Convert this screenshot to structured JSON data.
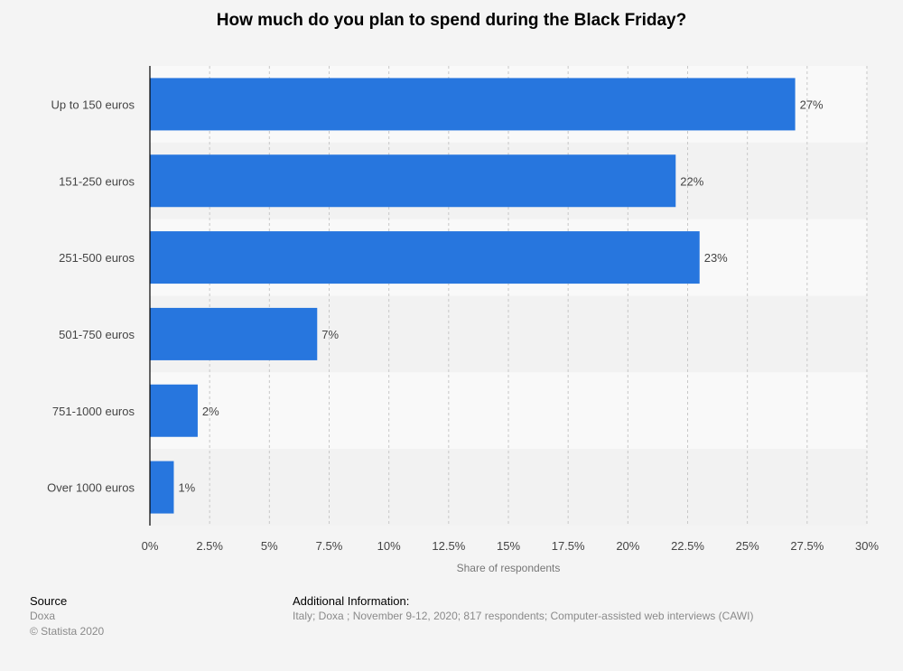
{
  "colors": {
    "bar": "#2776de",
    "band_light": "#f9f9f9",
    "band_dark": "#f2f2f2",
    "grid": "#c8c8c8",
    "axis": "#000000",
    "label_text": "#444444",
    "axis_title": "#777777"
  },
  "chart_data": {
    "type": "bar",
    "orientation": "horizontal",
    "title": "How much do you plan to spend during the Black Friday?",
    "categories": [
      "Up to 150 euros",
      "151-250 euros",
      "251-500 euros",
      "501-750 euros",
      "751-1000 euros",
      "Over 1000 euros"
    ],
    "values": [
      27,
      22,
      23,
      7,
      2,
      1
    ],
    "value_labels": [
      "27%",
      "22%",
      "23%",
      "7%",
      "2%",
      "1%"
    ],
    "xlabel": "Share of respondents",
    "ylabel": "",
    "xlim": [
      0,
      30
    ],
    "xticks": [
      0,
      2.5,
      5,
      7.5,
      10,
      12.5,
      15,
      17.5,
      20,
      22.5,
      25,
      27.5,
      30
    ],
    "xtick_labels": [
      "0%",
      "2.5%",
      "5%",
      "7.5%",
      "10%",
      "12.5%",
      "15%",
      "17.5%",
      "20%",
      "22.5%",
      "25%",
      "27.5%",
      "30%"
    ],
    "grid": true,
    "grid_style": "dashed vertical"
  },
  "footer": {
    "source_heading": "Source",
    "source_name": "Doxa",
    "copyright": "© Statista 2020",
    "additional_heading": "Additional Information:",
    "additional_text": "Italy; Doxa ; November 9-12, 2020; 817 respondents; Computer-assisted web interviews (CAWI)"
  }
}
